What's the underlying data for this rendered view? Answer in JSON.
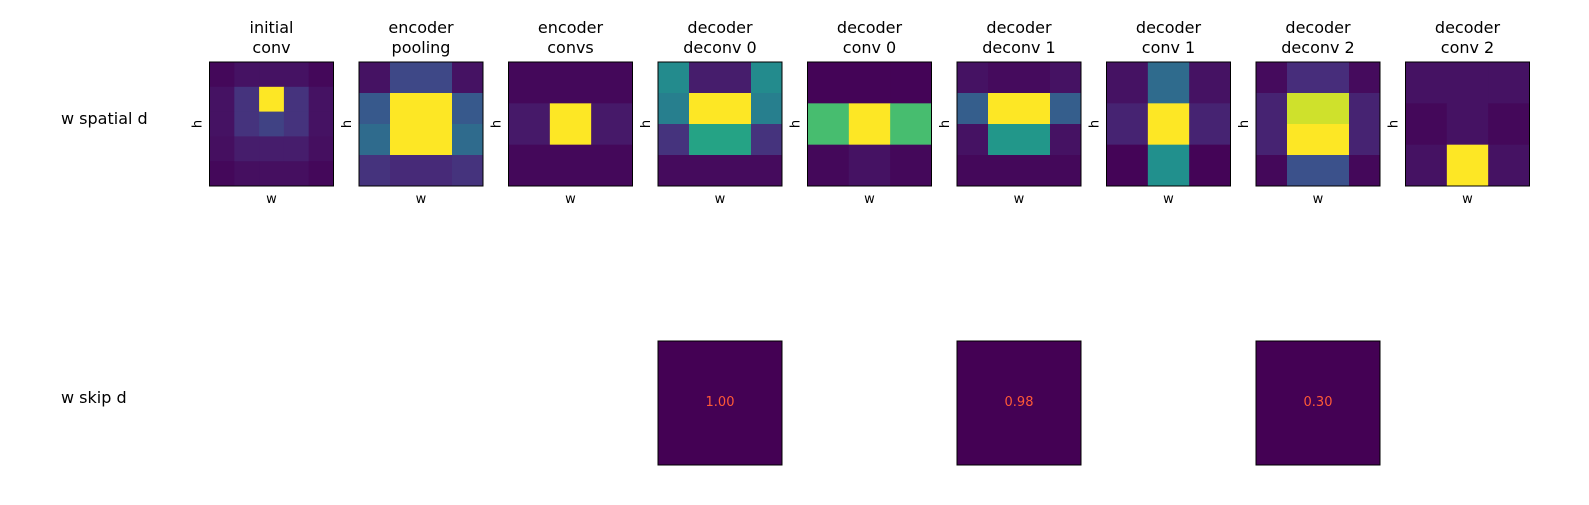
{
  "chart_data": {
    "type": "heatmap",
    "colormap": "viridis",
    "row_labels": [
      "w spatial d",
      "w skip d"
    ],
    "column_titles": [
      [
        "initial",
        "conv"
      ],
      [
        "encoder",
        "pooling"
      ],
      [
        "encoder",
        "convs"
      ],
      [
        "decoder",
        "deconv 0"
      ],
      [
        "decoder",
        "conv 0"
      ],
      [
        "decoder",
        "deconv 1"
      ],
      [
        "decoder",
        "conv 1"
      ],
      [
        "decoder",
        "deconv 2"
      ],
      [
        "decoder",
        "conv 2"
      ]
    ],
    "xlabel": "w",
    "ylabel": "h",
    "annotation_color": "#ff5a36",
    "spatial": [
      [
        [
          0.02,
          0.05,
          0.05,
          0.05,
          0.02
        ],
        [
          0.05,
          0.15,
          1.0,
          0.15,
          0.05
        ],
        [
          0.05,
          0.15,
          0.2,
          0.15,
          0.05
        ],
        [
          0.04,
          0.08,
          0.08,
          0.08,
          0.04
        ],
        [
          0.02,
          0.04,
          0.04,
          0.04,
          0.02
        ]
      ],
      [
        [
          0.05,
          0.22,
          0.22,
          0.05
        ],
        [
          0.28,
          1.0,
          1.0,
          0.28
        ],
        [
          0.35,
          1.0,
          1.0,
          0.35
        ],
        [
          0.15,
          0.12,
          0.12,
          0.15
        ]
      ],
      [
        [
          0.02,
          0.02,
          0.02
        ],
        [
          0.07,
          1.0,
          0.07
        ],
        [
          0.02,
          0.02,
          0.02
        ]
      ],
      [
        [
          0.48,
          0.08,
          0.08,
          0.48
        ],
        [
          0.43,
          1.0,
          1.0,
          0.43
        ],
        [
          0.15,
          0.58,
          0.58,
          0.15
        ],
        [
          0.03,
          0.03,
          0.03,
          0.03
        ]
      ],
      [
        [
          0.01,
          0.01,
          0.01
        ],
        [
          0.7,
          1.0,
          0.7
        ],
        [
          0.02,
          0.05,
          0.02
        ]
      ],
      [
        [
          0.05,
          0.03,
          0.03,
          0.05
        ],
        [
          0.3,
          1.0,
          1.0,
          0.3
        ],
        [
          0.05,
          0.53,
          0.53,
          0.05
        ],
        [
          0.02,
          0.02,
          0.02,
          0.02
        ]
      ],
      [
        [
          0.05,
          0.35,
          0.05
        ],
        [
          0.1,
          1.0,
          0.1
        ],
        [
          0.01,
          0.5,
          0.01
        ]
      ],
      [
        [
          0.03,
          0.13,
          0.13,
          0.03
        ],
        [
          0.1,
          0.93,
          0.93,
          0.1
        ],
        [
          0.1,
          1.0,
          1.0,
          0.1
        ],
        [
          0.02,
          0.25,
          0.25,
          0.02
        ]
      ],
      [
        [
          0.05,
          0.05,
          0.05
        ],
        [
          0.02,
          0.05,
          0.02
        ],
        [
          0.05,
          1.0,
          0.05
        ]
      ]
    ],
    "skip": [
      {
        "column": 3,
        "value": "1.00"
      },
      {
        "column": 5,
        "value": "0.98"
      },
      {
        "column": 7,
        "value": "0.30"
      }
    ]
  }
}
